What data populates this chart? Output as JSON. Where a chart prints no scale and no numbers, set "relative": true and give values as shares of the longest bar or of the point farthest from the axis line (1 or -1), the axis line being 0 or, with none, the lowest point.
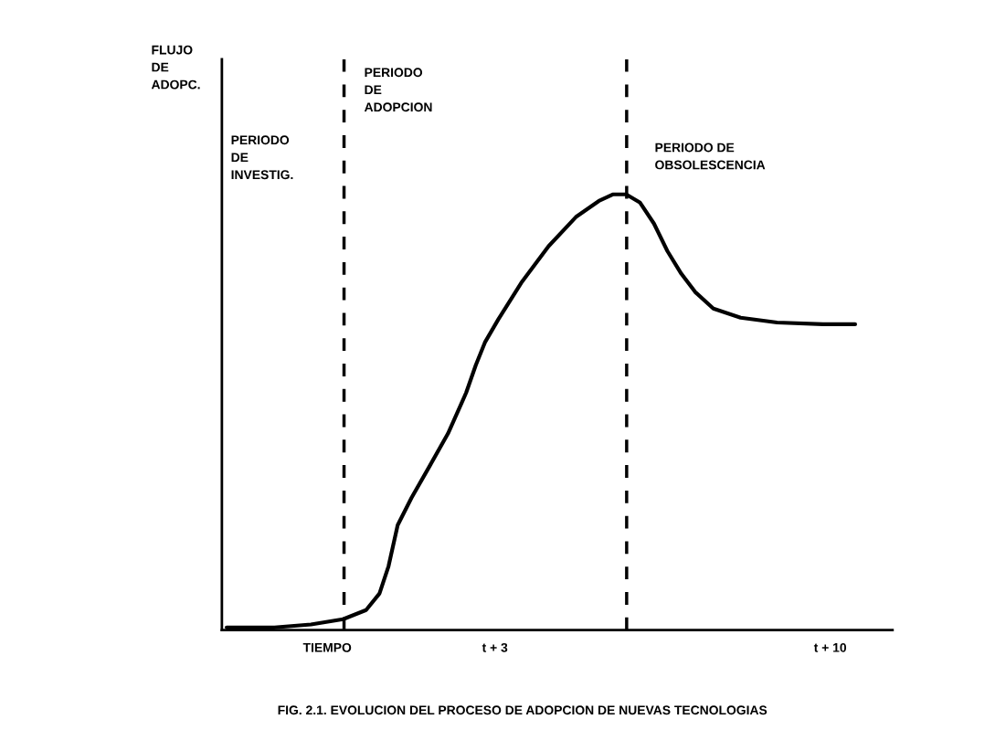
{
  "chart_data": {
    "type": "line",
    "relative": true,
    "title": "FIG. 2.1. EVOLUCION DEL PROCESO DE ADOPCION DE NUEVAS TECNOLOGIAS",
    "annotations": [
      "FLUJO\nDE\nADOPC.",
      "PERIODO\nDE\nINVESTIG.",
      "PERIODO\nDE\nADOPCION",
      "PERIODO DE\nOBSOLESCENCIA"
    ],
    "x": [
      -2.6,
      -1.6,
      -0.84,
      -0.17,
      0.31,
      0.59,
      0.78,
      0.97,
      1.26,
      1.64,
      2.02,
      2.4,
      2.6,
      2.79,
      3.07,
      3.55,
      4.12,
      4.69,
      5.17,
      5.46,
      5.74,
      6.03,
      6.32,
      6.6,
      6.89,
      7.18,
      7.56,
      8.13,
      8.89,
      9.85,
      10.52
    ],
    "series": [
      {
        "color": "#000000",
        "values": [
          0.006,
          0.006,
          0.013,
          0.025,
          0.046,
          0.084,
          0.147,
          0.241,
          0.304,
          0.377,
          0.451,
          0.545,
          0.608,
          0.66,
          0.713,
          0.797,
          0.881,
          0.948,
          0.985,
          1.0,
          1.0,
          0.981,
          0.933,
          0.87,
          0.818,
          0.776,
          0.738,
          0.717,
          0.706,
          0.702,
          0.702
        ]
      }
    ],
    "xlim": [
      -2.7,
      11.3
    ],
    "xticks": [
      {
        "value": -0.5,
        "label": "TIEMPO"
      },
      {
        "value": 3,
        "label": "t + 3"
      },
      {
        "value": 10,
        "label": "t + 10"
      }
    ],
    "ref_lines": [
      {
        "axis": "x",
        "value": -0.15,
        "color": "#000000",
        "line_style": "dashed"
      },
      {
        "axis": "x",
        "value": 5.75,
        "color": "#000000",
        "line_style": "dashed"
      }
    ],
    "grid": false,
    "legend": false,
    "marker": "none",
    "line_style": "solid"
  }
}
